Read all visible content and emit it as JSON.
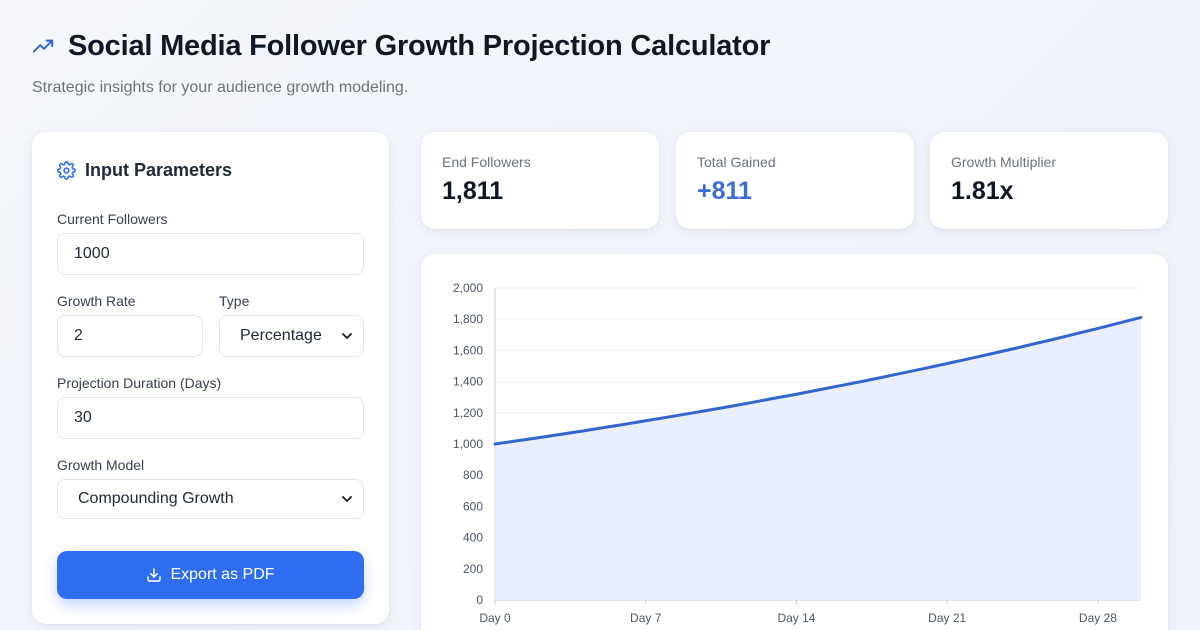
{
  "header": {
    "title": "Social Media Follower Growth Projection Calculator",
    "subtitle": "Strategic insights for your audience growth modeling.",
    "icon": "trending-up-icon"
  },
  "inputs": {
    "panel_title": "Input Parameters",
    "panel_icon": "gear-icon",
    "current_followers_label": "Current Followers",
    "current_followers_value": "1000",
    "growth_rate_label": "Growth Rate",
    "growth_rate_value": "2",
    "type_label": "Type",
    "type_value": "Percentage",
    "duration_label": "Projection Duration (Days)",
    "duration_value": "30",
    "model_label": "Growth Model",
    "model_value": "Compounding Growth",
    "export_label": "Export as PDF"
  },
  "stats": {
    "end_followers_label": "End Followers",
    "end_followers_value": "1,811",
    "total_gained_label": "Total Gained",
    "total_gained_value": "+811",
    "multiplier_label": "Growth Multiplier",
    "multiplier_value": "1.81x"
  },
  "colors": {
    "accent": "#2f6df0",
    "line": "#3366cc",
    "fill": "#e6ecfd",
    "gained": "#3c6ad8"
  },
  "chart_data": {
    "type": "area",
    "x": [
      0,
      1,
      2,
      3,
      4,
      5,
      6,
      7,
      8,
      9,
      10,
      11,
      12,
      13,
      14,
      15,
      16,
      17,
      18,
      19,
      20,
      21,
      22,
      23,
      24,
      25,
      26,
      27,
      28,
      29,
      30
    ],
    "x_tick_labels": [
      "Day 0",
      "Day 7",
      "Day 14",
      "Day 21",
      "Day 28"
    ],
    "x_tick_values": [
      0,
      7,
      14,
      21,
      28
    ],
    "series": [
      {
        "values": [
          1000,
          1020,
          1040,
          1061,
          1082,
          1104,
          1126,
          1149,
          1172,
          1195,
          1219,
          1243,
          1268,
          1294,
          1319,
          1346,
          1373,
          1400,
          1428,
          1457,
          1486,
          1516,
          1546,
          1577,
          1608,
          1641,
          1673,
          1707,
          1741,
          1776,
          1811
        ]
      }
    ],
    "y_ticks": [
      "0",
      "200",
      "400",
      "600",
      "800",
      "1,000",
      "1,200",
      "1,400",
      "1,600",
      "1,800",
      "2,000"
    ],
    "ylim": [
      0,
      2000
    ],
    "xlim": [
      0,
      30
    ],
    "grid": true
  }
}
